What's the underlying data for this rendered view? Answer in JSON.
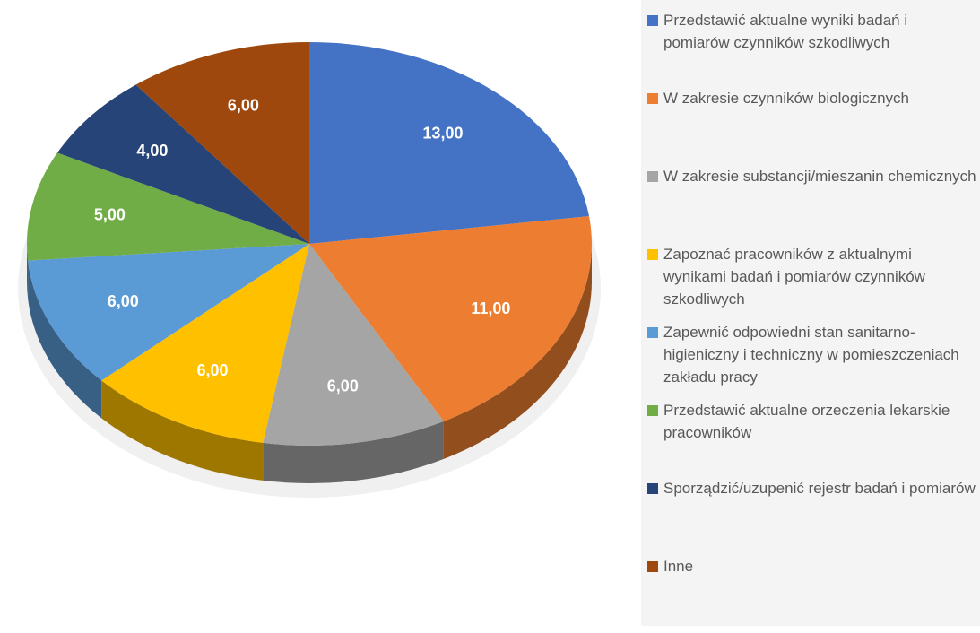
{
  "chart_data": {
    "type": "pie",
    "categories": [
      "Przedstawić aktualne wyniki badań i pomiarów czynników szkodliwych",
      "W zakresie czynników biologicznych",
      "W zakresie substancji/mieszanin chemicznych",
      "Zapoznać pracowników z aktualnymi wynikami badań i pomiarów czynników szkodliwych",
      "Zapewnić odpowiedni stan sanitarno-higieniczny i techniczny w pomieszczeniach zakładu pracy",
      "Przedstawić aktualne orzeczenia lekarskie pracowników",
      "Sporządzić/uzupenić rejestr badań i pomiarów",
      "Inne"
    ],
    "values": [
      13,
      11,
      6,
      6,
      6,
      5,
      4,
      6
    ],
    "value_labels": [
      "13,00",
      "11,00",
      "6,00",
      "6,00",
      "6,00",
      "5,00",
      "4,00",
      "6,00"
    ],
    "colors": [
      "#4472c4",
      "#ed7d31",
      "#a5a5a5",
      "#ffc000",
      "#5b9bd5",
      "#70ad47",
      "#264478",
      "#9e480e"
    ],
    "legend": "right"
  }
}
